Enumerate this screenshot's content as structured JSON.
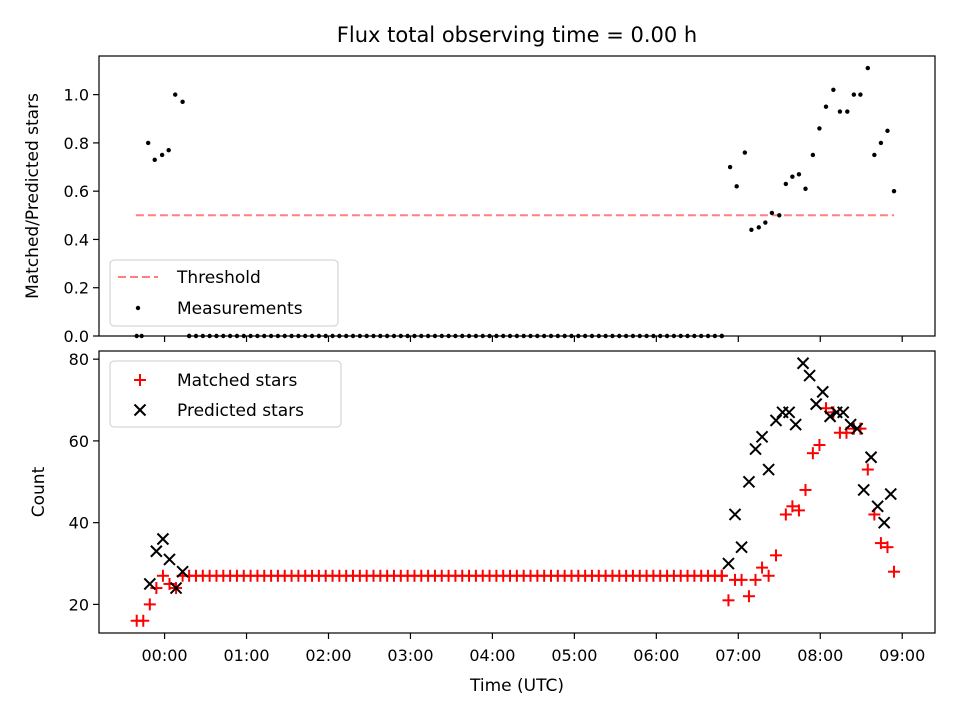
{
  "title": "Flux total observing time = 0.00 h",
  "xlabel": "Time (UTC)",
  "x_tick_labels": [
    "00:00",
    "01:00",
    "02:00",
    "03:00",
    "04:00",
    "05:00",
    "06:00",
    "07:00",
    "08:00",
    "09:00"
  ],
  "chart_data": [
    {
      "type": "scatter",
      "ylabel": "Matched/Predicted stars",
      "xlim_hours": [
        -0.8,
        9.4
      ],
      "ylim": [
        0,
        1.16
      ],
      "yticks": [
        "0.0",
        "0.2",
        "0.4",
        "0.6",
        "0.8",
        "1.0"
      ],
      "threshold": {
        "name": "Threshold",
        "value": 0.5,
        "x_start": -0.35,
        "x_end": 8.9,
        "color": "#ff7f7f"
      },
      "series": [
        {
          "name": "Measurements",
          "color": "#000000",
          "points": [
            [
              -0.34,
              0.0
            ],
            [
              -0.28,
              0.0
            ],
            [
              -0.2,
              0.8
            ],
            [
              -0.12,
              0.73
            ],
            [
              -0.03,
              0.75
            ],
            [
              0.05,
              0.77
            ],
            [
              0.13,
              1.0
            ],
            [
              0.22,
              0.97
            ],
            [
              0.3,
              0.0
            ],
            [
              6.8,
              0.0
            ],
            [
              6.9,
              0.7
            ],
            [
              6.98,
              0.62
            ],
            [
              7.08,
              0.76
            ],
            [
              7.16,
              0.44
            ],
            [
              7.25,
              0.45
            ],
            [
              7.33,
              0.47
            ],
            [
              7.41,
              0.51
            ],
            [
              7.5,
              0.5
            ],
            [
              7.58,
              0.63
            ],
            [
              7.66,
              0.66
            ],
            [
              7.74,
              0.67
            ],
            [
              7.82,
              0.61
            ],
            [
              7.91,
              0.75
            ],
            [
              7.99,
              0.86
            ],
            [
              8.07,
              0.95
            ],
            [
              8.16,
              1.02
            ],
            [
              8.24,
              0.93
            ],
            [
              8.33,
              0.93
            ],
            [
              8.41,
              1.0
            ],
            [
              8.49,
              1.0
            ],
            [
              8.58,
              1.11
            ],
            [
              8.66,
              0.75
            ],
            [
              8.74,
              0.8
            ],
            [
              8.82,
              0.85
            ],
            [
              8.9,
              0.6
            ]
          ]
        }
      ],
      "legend": {
        "placement": "lower-left",
        "entries": [
          "Threshold",
          "Measurements"
        ]
      }
    },
    {
      "type": "scatter",
      "ylabel": "Count",
      "xlim_hours": [
        -0.8,
        9.4
      ],
      "ylim": [
        13,
        82
      ],
      "yticks": [
        "20",
        "40",
        "60",
        "80"
      ],
      "series": [
        {
          "name": "Matched stars",
          "marker": "+",
          "color": "#ff0000",
          "points": [
            [
              -0.34,
              16
            ],
            [
              -0.26,
              16
            ],
            [
              -0.18,
              20
            ],
            [
              -0.1,
              24
            ],
            [
              -0.02,
              27
            ],
            [
              0.06,
              25
            ],
            [
              0.14,
              24
            ],
            [
              0.22,
              27
            ],
            [
              6.8,
              27
            ],
            [
              6.88,
              21
            ],
            [
              6.96,
              26
            ],
            [
              7.04,
              26
            ],
            [
              7.13,
              22
            ],
            [
              7.21,
              26
            ],
            [
              7.29,
              29
            ],
            [
              7.37,
              27
            ],
            [
              7.46,
              32
            ],
            [
              7.58,
              42
            ],
            [
              7.66,
              44
            ],
            [
              7.74,
              43
            ],
            [
              7.82,
              48
            ],
            [
              7.91,
              57
            ],
            [
              7.99,
              59
            ],
            [
              8.07,
              68
            ],
            [
              8.16,
              67
            ],
            [
              8.24,
              62
            ],
            [
              8.32,
              62
            ],
            [
              8.41,
              63
            ],
            [
              8.49,
              63
            ],
            [
              8.58,
              53
            ],
            [
              8.66,
              42
            ],
            [
              8.74,
              35
            ],
            [
              8.82,
              34
            ],
            [
              8.9,
              28
            ]
          ]
        },
        {
          "name": "Predicted stars",
          "marker": "x",
          "color": "#000000",
          "points": [
            [
              -0.18,
              25
            ],
            [
              -0.1,
              33
            ],
            [
              -0.02,
              36
            ],
            [
              0.06,
              31
            ],
            [
              0.14,
              24
            ],
            [
              0.22,
              28
            ],
            [
              6.88,
              30
            ],
            [
              6.96,
              42
            ],
            [
              7.04,
              34
            ],
            [
              7.13,
              50
            ],
            [
              7.21,
              58
            ],
            [
              7.29,
              61
            ],
            [
              7.37,
              53
            ],
            [
              7.46,
              65
            ],
            [
              7.54,
              67
            ],
            [
              7.62,
              67
            ],
            [
              7.7,
              64
            ],
            [
              7.79,
              79
            ],
            [
              7.87,
              76
            ],
            [
              7.95,
              69
            ],
            [
              8.03,
              72
            ],
            [
              8.12,
              66
            ],
            [
              8.2,
              67
            ],
            [
              8.28,
              67
            ],
            [
              8.37,
              64
            ],
            [
              8.45,
              63
            ],
            [
              8.53,
              48
            ],
            [
              8.62,
              56
            ],
            [
              8.7,
              44
            ],
            [
              8.78,
              40
            ],
            [
              8.86,
              47
            ]
          ]
        }
      ],
      "legend": {
        "placement": "upper-left",
        "entries": [
          "Matched stars",
          "Predicted stars"
        ]
      }
    }
  ]
}
